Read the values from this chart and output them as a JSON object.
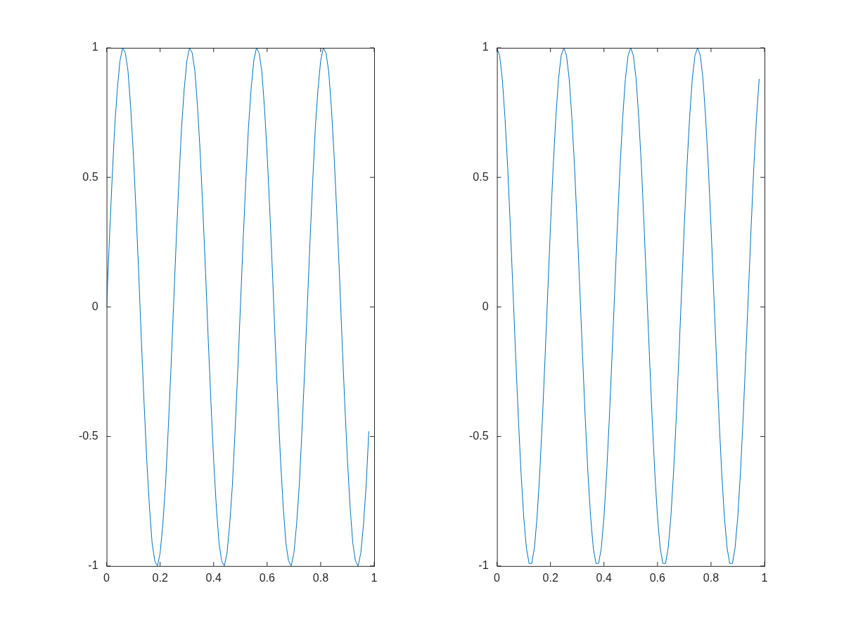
{
  "chart_data": [
    {
      "type": "line",
      "x": [
        0,
        0.01,
        0.02,
        0.03,
        0.04,
        0.05,
        0.06,
        0.07,
        0.08,
        0.09,
        0.1,
        0.11,
        0.12,
        0.13,
        0.14,
        0.15,
        0.16,
        0.17,
        0.18,
        0.19,
        0.2,
        0.21,
        0.22,
        0.23,
        0.24,
        0.25,
        0.26,
        0.27,
        0.28,
        0.29,
        0.3,
        0.31,
        0.32,
        0.33,
        0.34,
        0.35,
        0.36,
        0.37,
        0.38,
        0.39,
        0.4,
        0.41,
        0.42,
        0.43,
        0.44,
        0.45,
        0.46,
        0.47,
        0.48,
        0.49,
        0.5,
        0.51,
        0.52,
        0.53,
        0.54,
        0.55,
        0.56,
        0.57,
        0.58,
        0.59,
        0.6,
        0.61,
        0.62,
        0.63,
        0.64,
        0.65,
        0.66,
        0.67,
        0.68,
        0.69,
        0.7,
        0.71,
        0.72,
        0.73,
        0.74,
        0.75,
        0.76,
        0.77,
        0.78,
        0.79,
        0.8,
        0.81,
        0.82,
        0.83,
        0.84,
        0.85,
        0.86,
        0.87,
        0.88,
        0.89,
        0.9,
        0.91,
        0.92,
        0.93,
        0.94,
        0.95,
        0.96,
        0.97,
        0.98
      ],
      "series": [
        {
          "color": "#0072bd",
          "values": [
            0,
            0.25,
            0.48,
            0.69,
            0.84,
            0.95,
            1,
            0.98,
            0.91,
            0.77,
            0.59,
            0.37,
            0.13,
            -0.13,
            -0.37,
            -0.59,
            -0.77,
            -0.91,
            -0.98,
            -1,
            -0.95,
            -0.84,
            -0.69,
            -0.48,
            -0.25,
            0,
            0.25,
            0.48,
            0.69,
            0.84,
            0.95,
            1,
            0.98,
            0.91,
            0.77,
            0.59,
            0.37,
            0.13,
            -0.13,
            -0.37,
            -0.59,
            -0.77,
            -0.91,
            -0.98,
            -1,
            -0.95,
            -0.84,
            -0.69,
            -0.48,
            -0.25,
            0,
            0.25,
            0.48,
            0.69,
            0.84,
            0.95,
            1,
            0.98,
            0.91,
            0.77,
            0.59,
            0.37,
            0.13,
            -0.13,
            -0.37,
            -0.59,
            -0.77,
            -0.91,
            -0.98,
            -1,
            -0.95,
            -0.84,
            -0.69,
            -0.48,
            -0.25,
            0,
            0.25,
            0.48,
            0.69,
            0.84,
            0.95,
            1,
            0.98,
            0.91,
            0.77,
            0.59,
            0.37,
            0.13,
            -0.13,
            -0.37,
            -0.59,
            -0.77,
            -0.91,
            -0.98,
            -1,
            -0.95,
            -0.84,
            -0.69,
            -0.48
          ]
        }
      ],
      "xlim": [
        0,
        1
      ],
      "xticks": [
        0,
        0.2,
        0.4,
        0.6,
        0.8,
        1
      ],
      "ylim": [
        -1,
        1
      ],
      "yticks": [
        -1,
        -0.5,
        0,
        0.5,
        1
      ],
      "marker": "none",
      "line_style": "solid"
    },
    {
      "type": "line",
      "x": [
        0,
        0.01,
        0.02,
        0.03,
        0.04,
        0.05,
        0.06,
        0.07,
        0.08,
        0.09,
        0.1,
        0.11,
        0.12,
        0.13,
        0.14,
        0.15,
        0.16,
        0.17,
        0.18,
        0.19,
        0.2,
        0.21,
        0.22,
        0.23,
        0.24,
        0.25,
        0.26,
        0.27,
        0.28,
        0.29,
        0.3,
        0.31,
        0.32,
        0.33,
        0.34,
        0.35,
        0.36,
        0.37,
        0.38,
        0.39,
        0.4,
        0.41,
        0.42,
        0.43,
        0.44,
        0.45,
        0.46,
        0.47,
        0.48,
        0.49,
        0.5,
        0.51,
        0.52,
        0.53,
        0.54,
        0.55,
        0.56,
        0.57,
        0.58,
        0.59,
        0.6,
        0.61,
        0.62,
        0.63,
        0.64,
        0.65,
        0.66,
        0.67,
        0.68,
        0.69,
        0.7,
        0.71,
        0.72,
        0.73,
        0.74,
        0.75,
        0.76,
        0.77,
        0.78,
        0.79,
        0.8,
        0.81,
        0.82,
        0.83,
        0.84,
        0.85,
        0.86,
        0.87,
        0.88,
        0.89,
        0.9,
        0.91,
        0.92,
        0.93,
        0.94,
        0.95,
        0.96,
        0.97,
        0.98
      ],
      "series": [
        {
          "color": "#0072bd",
          "values": [
            1,
            0.97,
            0.88,
            0.73,
            0.54,
            0.31,
            0.06,
            -0.19,
            -0.43,
            -0.64,
            -0.81,
            -0.93,
            -0.99,
            -0.99,
            -0.93,
            -0.81,
            -0.64,
            -0.43,
            -0.19,
            0.06,
            0.31,
            0.54,
            0.73,
            0.88,
            0.97,
            1,
            0.97,
            0.88,
            0.73,
            0.54,
            0.31,
            0.06,
            -0.19,
            -0.43,
            -0.64,
            -0.81,
            -0.93,
            -0.99,
            -0.99,
            -0.93,
            -0.81,
            -0.64,
            -0.43,
            -0.19,
            0.06,
            0.31,
            0.54,
            0.73,
            0.88,
            0.97,
            1,
            0.97,
            0.88,
            0.73,
            0.54,
            0.31,
            0.06,
            -0.19,
            -0.43,
            -0.64,
            -0.81,
            -0.93,
            -0.99,
            -0.99,
            -0.93,
            -0.81,
            -0.64,
            -0.43,
            -0.19,
            0.06,
            0.31,
            0.54,
            0.73,
            0.88,
            0.97,
            1,
            0.97,
            0.88,
            0.73,
            0.54,
            0.31,
            0.06,
            -0.19,
            -0.43,
            -0.64,
            -0.81,
            -0.93,
            -0.99,
            -0.99,
            -0.93,
            -0.81,
            -0.64,
            -0.43,
            -0.19,
            0.06,
            0.31,
            0.54,
            0.73,
            0.88
          ]
        }
      ],
      "xlim": [
        0,
        1
      ],
      "xticks": [
        0,
        0.2,
        0.4,
        0.6,
        0.8,
        1
      ],
      "ylim": [
        -1,
        1
      ],
      "yticks": [
        -1,
        -0.5,
        0,
        0.5,
        1
      ],
      "marker": "none",
      "line_style": "solid"
    }
  ]
}
